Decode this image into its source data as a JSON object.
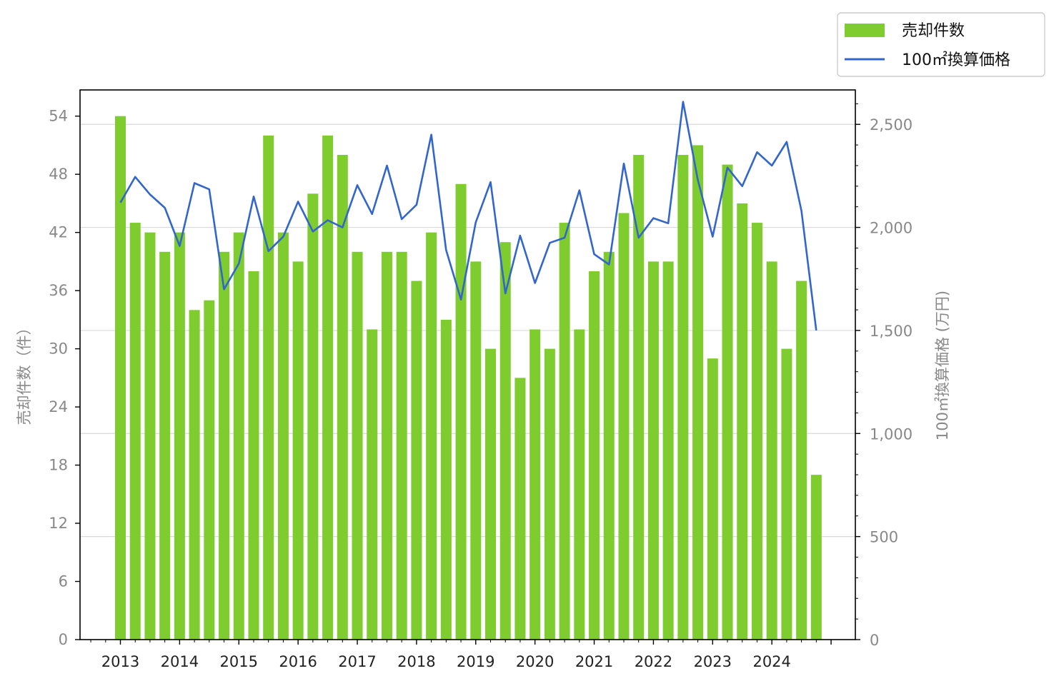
{
  "chart_data": {
    "type": "bar",
    "title": "",
    "xlabel": "",
    "ylabel": "売却件数（件）",
    "y2label": "100㎡換算価格 (万円)",
    "legend_position": "top-right",
    "grid": true,
    "ylim": [
      0,
      56.7
    ],
    "y2lim": [
      0,
      2667
    ],
    "yticks": [
      0,
      6,
      12,
      18,
      24,
      30,
      36,
      42,
      48,
      54
    ],
    "y2ticks": [
      0,
      500,
      1000,
      1500,
      2000,
      2500
    ],
    "y2tick_labels": [
      "0",
      "500",
      "1,000",
      "1,500",
      "2,000",
      "2,500"
    ],
    "year_labels": [
      "2013",
      "2014",
      "2015",
      "2016",
      "2017",
      "2018",
      "2019",
      "2020",
      "2021",
      "2022",
      "2023",
      "2024"
    ],
    "series": [
      {
        "name": "売却件数",
        "type": "bar",
        "color": "#7fcc2e",
        "values": [
          54,
          43,
          42,
          40,
          42,
          34,
          35,
          40,
          42,
          38,
          52,
          42,
          39,
          46,
          52,
          50,
          40,
          32,
          40,
          40,
          37,
          42,
          33,
          47,
          39,
          30,
          41,
          27,
          32,
          30,
          43,
          32,
          38,
          40,
          44,
          50,
          39,
          39,
          50,
          51,
          29,
          49,
          45,
          43,
          39,
          30,
          37,
          17
        ]
      },
      {
        "name": "100㎡換算価格",
        "type": "line",
        "color": "#3366cc",
        "values": [
          2120,
          2245,
          2160,
          2095,
          1910,
          2215,
          2185,
          1700,
          1825,
          2150,
          1885,
          1955,
          2125,
          1980,
          2035,
          2000,
          2205,
          2065,
          2300,
          2040,
          2110,
          2450,
          1890,
          1650,
          2025,
          2220,
          1680,
          1960,
          1730,
          1925,
          1950,
          2180,
          1870,
          1820,
          2310,
          1950,
          2045,
          2020,
          2610,
          2230,
          1955,
          2290,
          2200,
          2365,
          2300,
          2415,
          2080,
          1500
        ]
      }
    ]
  }
}
